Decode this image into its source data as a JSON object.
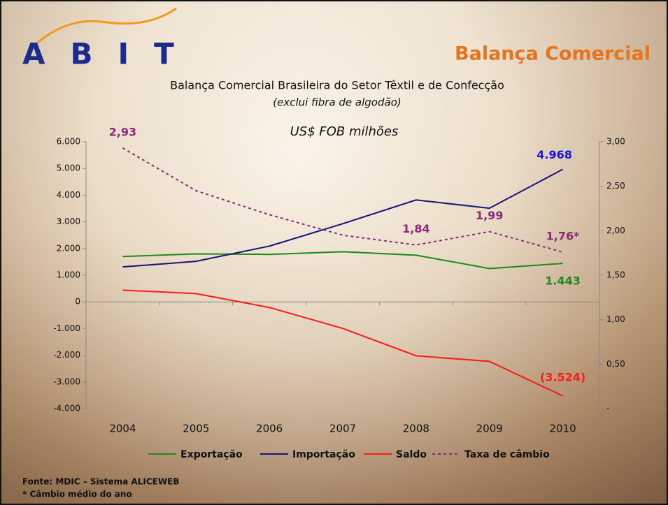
{
  "logo": "ABIT",
  "heading": "Balança Comercial",
  "chart_data": {
    "type": "line",
    "title": "Balança Comercial Brasileira do Setor Têxtil e de Confecção",
    "subtitle": "(exclui fibra de algodão)",
    "unit_label": "US$ FOB milhões",
    "categories": [
      "2004",
      "2005",
      "2006",
      "2007",
      "2008",
      "2009",
      "2010"
    ],
    "ylim": [
      -4000,
      6000
    ],
    "yticks": [
      {
        "value": -4000,
        "label": "-4.000"
      },
      {
        "value": -3000,
        "label": "-3.000"
      },
      {
        "value": -2000,
        "label": "-2.000"
      },
      {
        "value": -1000,
        "label": "-1.000"
      },
      0,
      {
        "value": 1000,
        "label": "1.000"
      },
      {
        "value": 2000,
        "label": "2.000"
      },
      {
        "value": 3000,
        "label": "3.000"
      },
      {
        "value": 4000,
        "label": "4.000"
      },
      {
        "value": 5000,
        "label": "5.000"
      },
      {
        "value": 6000,
        "label": "6.000"
      }
    ],
    "y2lim": [
      0,
      3
    ],
    "y2ticks": [
      {
        "value": 0,
        "label": "-"
      },
      {
        "value": 0.5,
        "label": "0,50"
      },
      {
        "value": 1,
        "label": "1,00"
      },
      {
        "value": 1.5,
        "label": "1,50"
      },
      {
        "value": 2,
        "label": "2,00"
      },
      {
        "value": 2.5,
        "label": "2,50"
      },
      {
        "value": 3,
        "label": "3,00"
      }
    ],
    "series": [
      {
        "name": "Exportação",
        "color": "#1e8a1e",
        "values": [
          1700,
          1800,
          1780,
          1880,
          1750,
          1250,
          1443
        ],
        "value_labels": [
          null,
          null,
          null,
          null,
          null,
          null,
          "1.443"
        ]
      },
      {
        "name": "Importação",
        "color": "#14147a",
        "values": [
          1310,
          1520,
          2090,
          2930,
          3820,
          3510,
          4968
        ],
        "value_labels": [
          null,
          null,
          null,
          null,
          null,
          null,
          "4.968"
        ],
        "label_color": "#1515e0"
      },
      {
        "name": "Saldo",
        "color": "#ff1a1a",
        "values": [
          440,
          310,
          -210,
          -995,
          -2020,
          -2230,
          -3524
        ],
        "value_labels": [
          null,
          null,
          null,
          null,
          null,
          null,
          "(3.524)"
        ]
      },
      {
        "name": "Taxa de câmbio",
        "color": "#8b2a7a",
        "axis": "y2",
        "style": "dashed",
        "values": [
          2.93,
          2.45,
          2.18,
          1.95,
          1.84,
          1.99,
          1.76
        ],
        "value_labels": [
          "2,93",
          null,
          null,
          null,
          "1,84",
          "1,99",
          "1,76*"
        ]
      }
    ]
  },
  "footer": [
    "Fonte: MDIC – Sistema ALICEWEB",
    "* Câmbio médio do ano"
  ]
}
